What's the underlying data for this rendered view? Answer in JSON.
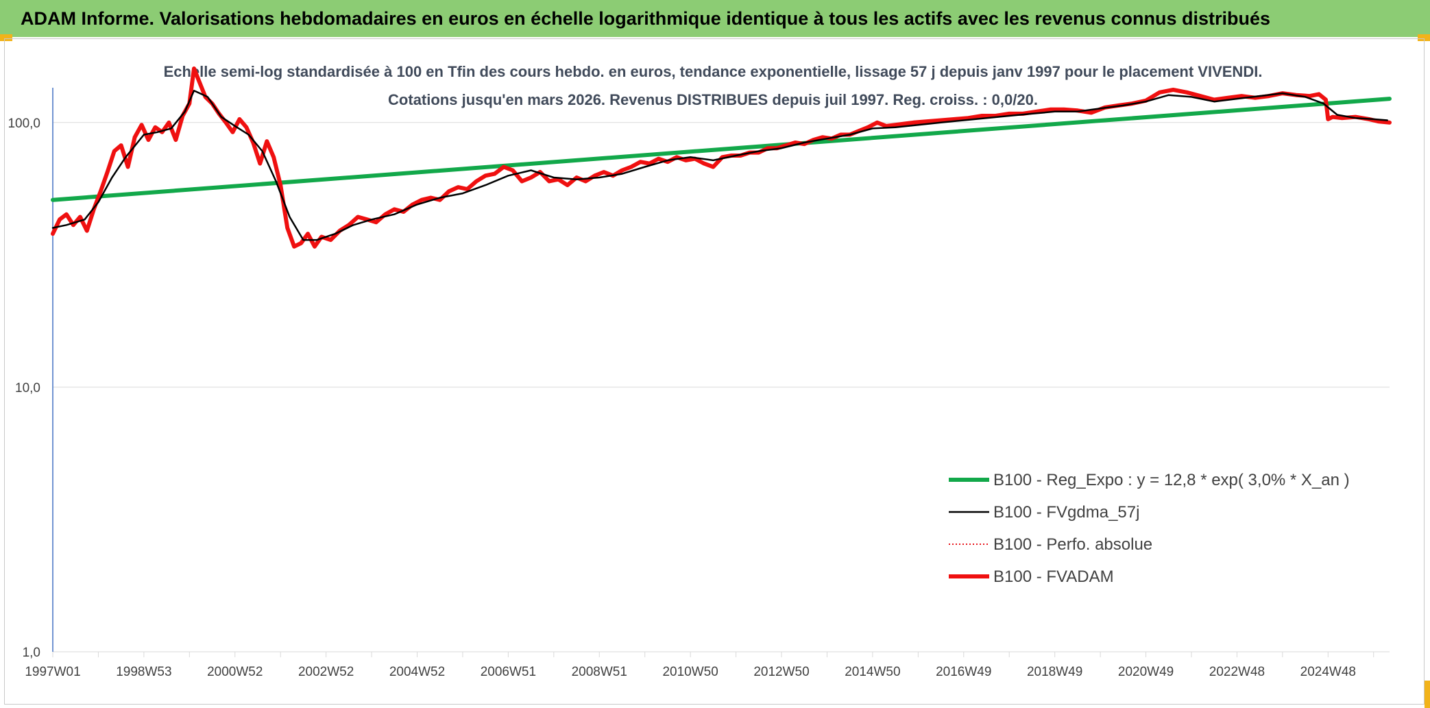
{
  "header": {
    "title": "ADAM Informe. Valorisations hebdomadaires en euros en échelle logarithmique identique à tous les actifs avec les revenus connus distribués"
  },
  "chart_data": {
    "type": "line",
    "title": "Echelle semi-log standardisée à 100 en Tfin des cours hebdo. en euros, tendance exponentielle, lissage 57 j depuis janv 1997 pour le placement VIVENDI. Cotations jusqu'en mars 2026. Revenus DISTRIBUES depuis juil 1997. Reg. croiss. : 0,0/20.",
    "xlabel": "",
    "ylabel": "",
    "y_scale": "log",
    "ylim": [
      1,
      160
    ],
    "xlim": [
      1997.0,
      2026.35
    ],
    "grid": true,
    "legend_position": "center-right",
    "y_ticks": [
      {
        "value": 1,
        "label": "1,0"
      },
      {
        "value": 10,
        "label": "10,0"
      },
      {
        "value": 100,
        "label": "100,0"
      }
    ],
    "x_ticks": [
      {
        "x": 1997.0,
        "label": "1997W01"
      },
      {
        "x": 1999.0,
        "label": "1998W53"
      },
      {
        "x": 2001.0,
        "label": "2000W52"
      },
      {
        "x": 2003.0,
        "label": "2002W52"
      },
      {
        "x": 2005.0,
        "label": "2004W52"
      },
      {
        "x": 2007.0,
        "label": "2006W51"
      },
      {
        "x": 2009.0,
        "label": "2008W51"
      },
      {
        "x": 2011.0,
        "label": "2010W50"
      },
      {
        "x": 2013.0,
        "label": "2012W50"
      },
      {
        "x": 2015.0,
        "label": "2014W50"
      },
      {
        "x": 2017.0,
        "label": "2016W49"
      },
      {
        "x": 2019.0,
        "label": "2018W49"
      },
      {
        "x": 2021.0,
        "label": "2020W49"
      },
      {
        "x": 2023.0,
        "label": "2022W48"
      },
      {
        "x": 2025.0,
        "label": "2024W48"
      }
    ],
    "series": [
      {
        "name": "B100 - Reg_Expo : y = 12,8 * exp( 3,0% *  X_an )",
        "color": "#12a84a",
        "style": "thick",
        "x": [
          1997.0,
          2026.35
        ],
        "y": [
          51,
          123
        ]
      },
      {
        "name": "B100 - FVgdma_57j",
        "color": "#000000",
        "style": "thin",
        "x": [
          1997.0,
          1997.3,
          1997.7,
          1998.0,
          1998.3,
          1998.6,
          1999.0,
          1999.3,
          1999.6,
          1999.9,
          2000.1,
          2000.4,
          2000.7,
          2001.0,
          2001.3,
          2001.6,
          2001.9,
          2002.2,
          2002.5,
          2002.8,
          2003.2,
          2003.6,
          2004.0,
          2004.5,
          2005.0,
          2005.5,
          2006.0,
          2006.5,
          2007.0,
          2007.5,
          2008.0,
          2008.5,
          2009.0,
          2009.5,
          2010.0,
          2010.5,
          2011.0,
          2011.5,
          2012.0,
          2012.5,
          2013.0,
          2013.5,
          2014.0,
          2014.5,
          2015.0,
          2015.5,
          2016.0,
          2016.5,
          2017.0,
          2017.5,
          2018.0,
          2018.5,
          2019.0,
          2019.5,
          2020.0,
          2020.5,
          2021.0,
          2021.5,
          2022.0,
          2022.5,
          2023.0,
          2023.5,
          2024.0,
          2024.5,
          2024.9,
          2025.2,
          2025.6,
          2026.0,
          2026.3
        ],
        "y": [
          40,
          41,
          43,
          50,
          62,
          74,
          90,
          92,
          95,
          110,
          132,
          125,
          105,
          97,
          90,
          78,
          60,
          44,
          36,
          36,
          38,
          41,
          43,
          45,
          49,
          52,
          54,
          58,
          63,
          66,
          62,
          61,
          62,
          64,
          68,
          72,
          74,
          72,
          75,
          78,
          80,
          84,
          87,
          90,
          95,
          96,
          98,
          100,
          102,
          104,
          106,
          108,
          110,
          110,
          113,
          116,
          120,
          127,
          125,
          120,
          123,
          126,
          129,
          125,
          118,
          107,
          104,
          103,
          102
        ]
      },
      {
        "name": "B100 - Perfo. absolue",
        "color": "#e8141b",
        "style": "dotted",
        "x": [],
        "y": []
      },
      {
        "name": "B100 - FVADAM",
        "color": "#ef1010",
        "style": "thick",
        "x": [
          1997.0,
          1997.15,
          1997.3,
          1997.45,
          1997.6,
          1997.75,
          1997.9,
          1998.05,
          1998.2,
          1998.35,
          1998.5,
          1998.65,
          1998.8,
          1998.95,
          1999.1,
          1999.25,
          1999.4,
          1999.55,
          1999.7,
          1999.85,
          2000.0,
          2000.1,
          2000.2,
          2000.35,
          2000.5,
          2000.65,
          2000.8,
          2000.95,
          2001.1,
          2001.25,
          2001.4,
          2001.55,
          2001.7,
          2001.85,
          2002.0,
          2002.15,
          2002.3,
          2002.45,
          2002.6,
          2002.75,
          2002.9,
          2003.1,
          2003.3,
          2003.5,
          2003.7,
          2003.9,
          2004.1,
          2004.3,
          2004.5,
          2004.7,
          2004.9,
          2005.1,
          2005.3,
          2005.5,
          2005.7,
          2005.9,
          2006.1,
          2006.3,
          2006.5,
          2006.7,
          2006.9,
          2007.1,
          2007.3,
          2007.5,
          2007.7,
          2007.9,
          2008.1,
          2008.3,
          2008.5,
          2008.7,
          2008.9,
          2009.1,
          2009.3,
          2009.5,
          2009.7,
          2009.9,
          2010.1,
          2010.3,
          2010.5,
          2010.7,
          2010.9,
          2011.1,
          2011.3,
          2011.5,
          2011.7,
          2011.9,
          2012.1,
          2012.3,
          2012.5,
          2012.7,
          2012.9,
          2013.1,
          2013.3,
          2013.5,
          2013.7,
          2013.9,
          2014.1,
          2014.3,
          2014.5,
          2014.7,
          2014.9,
          2015.1,
          2015.3,
          2015.5,
          2015.7,
          2015.9,
          2016.2,
          2016.5,
          2016.8,
          2017.1,
          2017.4,
          2017.7,
          2018.0,
          2018.3,
          2018.6,
          2018.9,
          2019.2,
          2019.5,
          2019.8,
          2020.1,
          2020.4,
          2020.7,
          2021.0,
          2021.3,
          2021.6,
          2021.9,
          2022.2,
          2022.5,
          2022.8,
          2023.1,
          2023.4,
          2023.7,
          2024.0,
          2024.3,
          2024.6,
          2024.8,
          2024.95,
          2025.0,
          2025.1,
          2025.3,
          2025.6,
          2025.9,
          2026.1,
          2026.35
        ],
        "y": [
          38,
          43,
          45,
          41,
          44,
          39,
          47,
          55,
          65,
          78,
          82,
          68,
          88,
          98,
          86,
          96,
          92,
          100,
          86,
          106,
          118,
          160,
          145,
          125,
          118,
          108,
          100,
          92,
          103,
          96,
          84,
          70,
          85,
          74,
          58,
          40,
          34,
          35,
          38,
          34,
          37,
          36,
          39,
          41,
          44,
          43,
          42,
          45,
          47,
          46,
          49,
          51,
          52,
          51,
          55,
          57,
          56,
          60,
          63,
          64,
          68,
          66,
          60,
          62,
          65,
          60,
          61,
          58,
          62,
          60,
          63,
          65,
          63,
          66,
          68,
          71,
          70,
          73,
          71,
          74,
          72,
          73,
          70,
          68,
          74,
          75,
          75,
          77,
          77,
          80,
          80,
          82,
          84,
          83,
          86,
          88,
          87,
          90,
          90,
          93,
          96,
          100,
          97,
          98,
          99,
          100,
          101,
          102,
          103,
          104,
          106,
          106,
          108,
          108,
          110,
          112,
          112,
          111,
          109,
          114,
          116,
          118,
          121,
          130,
          133,
          130,
          126,
          122,
          124,
          126,
          124,
          126,
          129,
          127,
          126,
          128,
          122,
          103,
          105,
          104,
          105,
          103,
          101,
          100
        ]
      }
    ]
  }
}
